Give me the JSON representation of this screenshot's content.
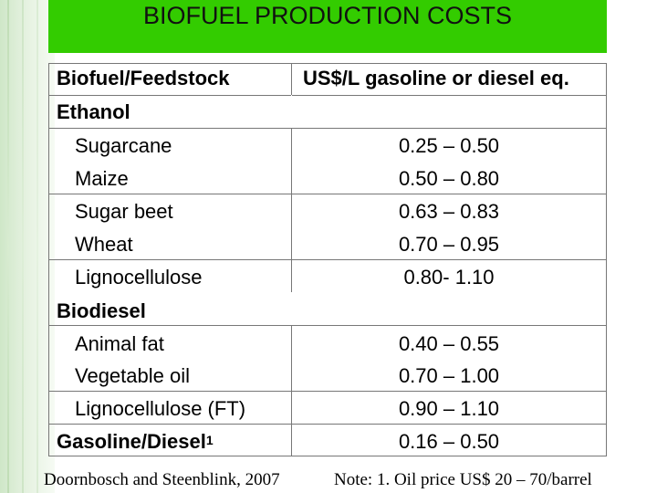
{
  "title": "BIOFUEL PRODUCTION COSTS",
  "table": {
    "headers": [
      "Biofuel/Feedstock",
      "US$/L gasoline or diesel eq."
    ],
    "groups": {
      "ethanol": "Ethanol",
      "biodiesel": "Biodiesel"
    },
    "rows": [
      {
        "feedstock": "Sugarcane",
        "cost": "0.25 – 0.50"
      },
      {
        "feedstock": "Maize",
        "cost": "0.50 – 0.80"
      },
      {
        "feedstock": "Sugar beet",
        "cost": "0.63 – 0.83"
      },
      {
        "feedstock": "Wheat",
        "cost": "0.70 – 0.95"
      },
      {
        "feedstock": "Lignocellulose",
        "cost": "0.80- 1.10"
      },
      {
        "feedstock": "Animal fat",
        "cost": "0.40 – 0.55"
      },
      {
        "feedstock": "Vegetable oil",
        "cost": "0.70 – 1.00"
      },
      {
        "feedstock": "Lignocellulose (FT)",
        "cost": "0.90 – 1.10"
      }
    ],
    "baseline": {
      "label": "Gasoline/Diesel",
      "note_marker": "1",
      "cost": "0.16 – 0.50"
    }
  },
  "footer": {
    "source": "Doornbosch and Steenblink, 2007",
    "note": "Note: 1. Oil price US$ 20 – 70/barrel"
  },
  "colors": {
    "title_bar": "#33cc00",
    "grid_lines": "#777777"
  }
}
